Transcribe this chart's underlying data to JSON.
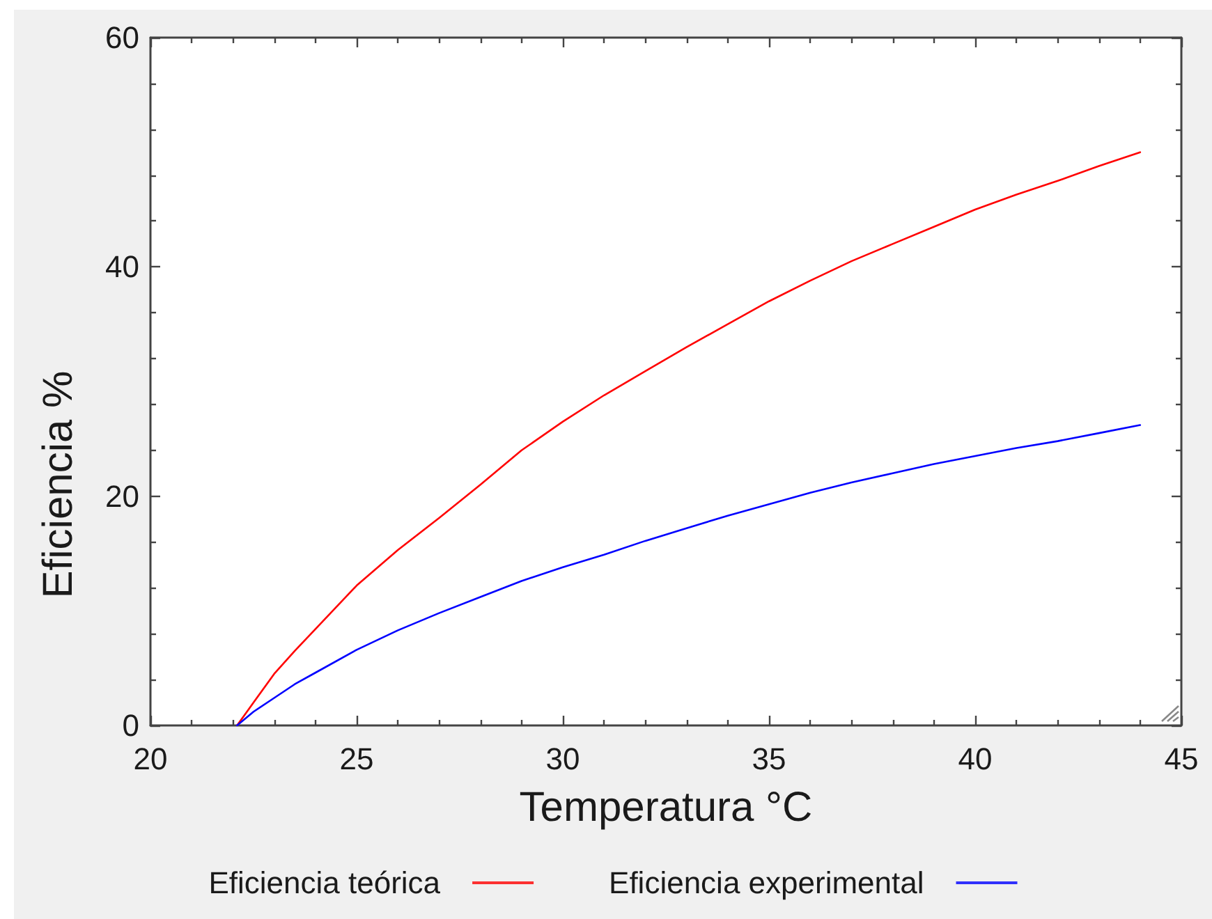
{
  "chart_data": {
    "type": "line",
    "xlabel": "Temperatura °C",
    "ylabel": "Eficiencia %",
    "x": [
      22.1,
      22.5,
      23,
      23.5,
      24,
      25,
      26,
      27,
      28,
      29,
      30,
      31,
      32,
      33,
      34,
      35,
      36,
      37,
      38,
      39,
      40,
      41,
      42,
      43,
      44
    ],
    "series": [
      {
        "name": "Eficiencia teórica",
        "color": "#ff0000",
        "values": [
          0,
          2.0,
          4.5,
          6.5,
          8.4,
          12.2,
          15.3,
          18.1,
          21.0,
          24.0,
          26.5,
          28.8,
          30.9,
          33.0,
          35.0,
          37.0,
          38.8,
          40.5,
          42.0,
          43.5,
          45.0,
          46.3,
          47.5,
          48.8,
          50.0
        ]
      },
      {
        "name": "Eficiencia experimental",
        "color": "#0000ff",
        "values": [
          0,
          1.2,
          2.4,
          3.6,
          4.6,
          6.6,
          8.3,
          9.8,
          11.2,
          12.6,
          13.8,
          14.9,
          16.1,
          17.2,
          18.3,
          19.3,
          20.3,
          21.2,
          22.0,
          22.8,
          23.5,
          24.2,
          24.8,
          25.5,
          26.2
        ]
      }
    ],
    "xlim": [
      20,
      45
    ],
    "ylim": [
      0,
      60
    ],
    "xticks": [
      20,
      {
        "value": 21,
        "label": null
      },
      {
        "value": 22,
        "label": null
      },
      {
        "value": 23,
        "label": null
      },
      {
        "value": 24,
        "label": null
      },
      25,
      {
        "value": 26,
        "label": null
      },
      {
        "value": 27,
        "label": null
      },
      {
        "value": 28,
        "label": null
      },
      {
        "value": 29,
        "label": null
      },
      30,
      {
        "value": 31,
        "label": null
      },
      {
        "value": 32,
        "label": null
      },
      {
        "value": 33,
        "label": null
      },
      {
        "value": 34,
        "label": null
      },
      35,
      {
        "value": 36,
        "label": null
      },
      {
        "value": 37,
        "label": null
      },
      {
        "value": 38,
        "label": null
      },
      {
        "value": 39,
        "label": null
      },
      40,
      {
        "value": 41,
        "label": null
      },
      {
        "value": 42,
        "label": null
      },
      {
        "value": 43,
        "label": null
      },
      {
        "value": 44,
        "label": null
      },
      45
    ],
    "yticks": [
      0,
      {
        "value": 4,
        "label": null
      },
      {
        "value": 8,
        "label": null
      },
      {
        "value": 12,
        "label": null
      },
      {
        "value": 16,
        "label": null
      },
      20,
      {
        "value": 24,
        "label": null
      },
      {
        "value": 28,
        "label": null
      },
      {
        "value": 32,
        "label": null
      },
      {
        "value": 36,
        "label": null
      },
      40,
      {
        "value": 44,
        "label": null
      },
      {
        "value": 48,
        "label": null
      },
      {
        "value": 52,
        "label": null
      },
      {
        "value": 56,
        "label": null
      },
      60
    ],
    "legend": "bottom",
    "marker": "none",
    "line_style": "solid"
  }
}
